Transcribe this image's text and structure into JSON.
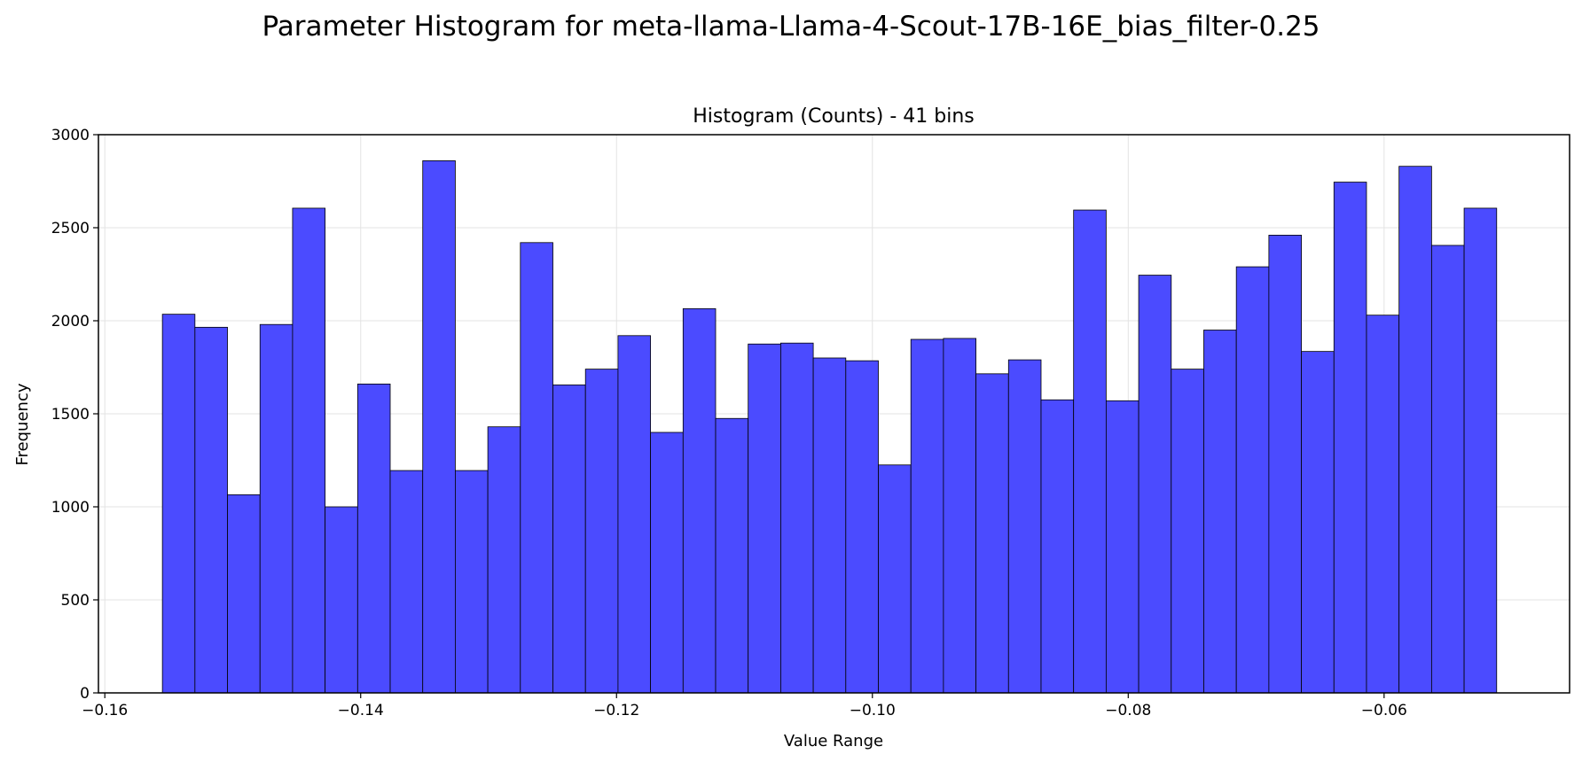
{
  "chart_data": {
    "type": "bar",
    "title": "Parameter Histogram for meta-llama-Llama-4-Scout-17B-16E_bias_filter-0.25",
    "subtitle": "Histogram (Counts) - 41 bins",
    "xlabel": "Value Range",
    "ylabel": "Frequency",
    "xlim": [
      -0.1605,
      -0.0455
    ],
    "ylim": [
      0,
      3000
    ],
    "grid": true,
    "bar_color": "#4b4bff",
    "edge_color": "#000000",
    "x_ticks": [
      {
        "v": -0.16,
        "label": "−0.16"
      },
      {
        "v": -0.14,
        "label": "−0.14"
      },
      {
        "v": -0.12,
        "label": "−0.12"
      },
      {
        "v": -0.1,
        "label": "−0.10"
      },
      {
        "v": -0.08,
        "label": "−0.08"
      },
      {
        "v": -0.06,
        "label": "−0.06"
      }
    ],
    "y_ticks": [
      {
        "v": 0,
        "label": "0"
      },
      {
        "v": 500,
        "label": "500"
      },
      {
        "v": 1000,
        "label": "1000"
      },
      {
        "v": 1500,
        "label": "1500"
      },
      {
        "v": 2000,
        "label": "2000"
      },
      {
        "v": 2500,
        "label": "2500"
      },
      {
        "v": 3000,
        "label": "3000"
      }
    ],
    "bin_range": [
      -0.1555,
      -0.0512
    ],
    "values": [
      2035,
      1965,
      1065,
      1980,
      2605,
      1000,
      1660,
      1195,
      2860,
      1195,
      1430,
      2420,
      1655,
      1740,
      1920,
      1400,
      2065,
      1475,
      1875,
      1880,
      1800,
      1785,
      1225,
      1900,
      1905,
      1715,
      1790,
      1575,
      2595,
      1570,
      2245,
      1740,
      1950,
      2290,
      2460,
      1835,
      2745,
      2030,
      2830,
      2405,
      2605
    ]
  }
}
